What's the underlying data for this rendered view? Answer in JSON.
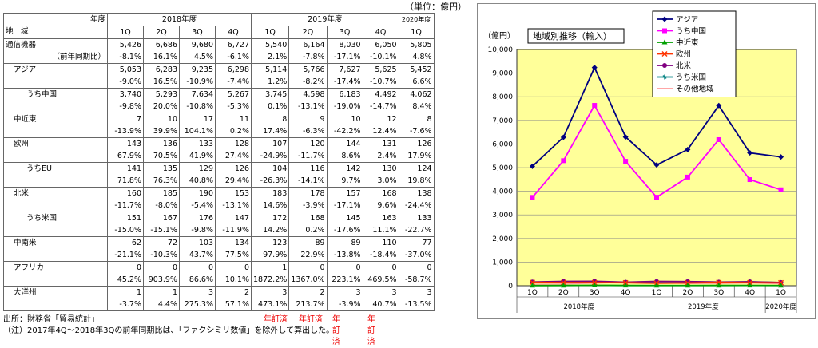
{
  "unit_label": "（単位：億円）",
  "table": {
    "corner_top": "年度",
    "corner_bottom": "地　域",
    "year_groups": [
      "2018年度",
      "2019年度",
      "2020年度"
    ],
    "quarters": [
      "1Q",
      "2Q",
      "3Q",
      "4Q",
      "1Q",
      "2Q",
      "3Q",
      "4Q",
      "1Q"
    ],
    "rows": [
      {
        "label": "通信機器",
        "indent": 0,
        "values": [
          "5,426",
          "6,686",
          "9,680",
          "6,727",
          "5,540",
          "6,164",
          "8,030",
          "6,050",
          "5,805"
        ],
        "yoy_label": "（前年同期比）",
        "yoy": [
          "-8.1%",
          "16.1%",
          "4.5%",
          "-6.1%",
          "2.1%",
          "-7.8%",
          "-17.1%",
          "-10.1%",
          "4.8%"
        ]
      },
      {
        "label": "アジア",
        "indent": 1,
        "values": [
          "5,053",
          "6,283",
          "9,235",
          "6,298",
          "5,114",
          "5,766",
          "7,627",
          "5,625",
          "5,452"
        ],
        "yoy_label": "",
        "yoy": [
          "-9.0%",
          "16.5%",
          "-10.9%",
          "-7.4%",
          "1.2%",
          "-8.2%",
          "-17.4%",
          "-10.7%",
          "6.6%"
        ]
      },
      {
        "label": "うち中国",
        "indent": 2,
        "values": [
          "3,740",
          "5,293",
          "7,634",
          "5,267",
          "3,745",
          "4,598",
          "6,183",
          "4,492",
          "4,062"
        ],
        "yoy_label": "",
        "yoy": [
          "-9.8%",
          "20.0%",
          "-10.8%",
          "-5.3%",
          "0.1%",
          "-13.1%",
          "-19.0%",
          "-14.7%",
          "8.4%"
        ]
      },
      {
        "label": "中近東",
        "indent": 1,
        "values": [
          "7",
          "10",
          "17",
          "11",
          "8",
          "9",
          "10",
          "12",
          "8"
        ],
        "yoy_label": "",
        "yoy": [
          "-13.9%",
          "39.9%",
          "104.1%",
          "0.2%",
          "17.4%",
          "-6.3%",
          "-42.2%",
          "12.4%",
          "-7.6%"
        ]
      },
      {
        "label": "欧州",
        "indent": 1,
        "values": [
          "143",
          "136",
          "133",
          "128",
          "107",
          "120",
          "144",
          "131",
          "126"
        ],
        "yoy_label": "",
        "yoy": [
          "67.9%",
          "70.5%",
          "41.9%",
          "27.4%",
          "-24.9%",
          "-11.7%",
          "8.6%",
          "2.4%",
          "17.9%"
        ]
      },
      {
        "label": "うちEU",
        "indent": 2,
        "values": [
          "141",
          "135",
          "129",
          "126",
          "104",
          "116",
          "142",
          "130",
          "124"
        ],
        "yoy_label": "",
        "yoy": [
          "71.8%",
          "76.3%",
          "40.8%",
          "29.4%",
          "-26.3%",
          "-14.1%",
          "9.7%",
          "3.0%",
          "19.8%"
        ]
      },
      {
        "label": "北米",
        "indent": 1,
        "values": [
          "160",
          "185",
          "190",
          "153",
          "183",
          "178",
          "157",
          "168",
          "138"
        ],
        "yoy_label": "",
        "yoy": [
          "-11.7%",
          "-8.0%",
          "-5.4%",
          "-13.1%",
          "14.6%",
          "-3.9%",
          "-17.1%",
          "9.6%",
          "-24.4%"
        ]
      },
      {
        "label": "うち米国",
        "indent": 2,
        "values": [
          "151",
          "167",
          "176",
          "147",
          "172",
          "168",
          "145",
          "163",
          "133"
        ],
        "yoy_label": "",
        "yoy": [
          "-15.0%",
          "-15.1%",
          "-9.8%",
          "-11.9%",
          "14.2%",
          "0.2%",
          "-17.6%",
          "11.1%",
          "-22.7%"
        ]
      },
      {
        "label": "中南米",
        "indent": 1,
        "values": [
          "62",
          "72",
          "103",
          "134",
          "123",
          "89",
          "89",
          "110",
          "77"
        ],
        "yoy_label": "",
        "yoy": [
          "-21.1%",
          "-10.3%",
          "43.7%",
          "77.5%",
          "97.9%",
          "22.9%",
          "-13.8%",
          "-18.4%",
          "-37.0%"
        ]
      },
      {
        "label": "アフリカ",
        "indent": 1,
        "values": [
          "0",
          "0",
          "0",
          "0",
          "1",
          "0",
          "0",
          "0",
          "0"
        ],
        "yoy_label": "",
        "yoy": [
          "45.2%",
          "903.9%",
          "86.6%",
          "10.1%",
          "1872.2%",
          "1367.0%",
          "223.1%",
          "469.5%",
          "-58.7%"
        ]
      },
      {
        "label": "大洋州",
        "indent": 1,
        "values": [
          "1",
          "1",
          "3",
          "2",
          "3",
          "2",
          "3",
          "3",
          "3"
        ],
        "yoy_label": "",
        "yoy": [
          "-3.7%",
          "4.4%",
          "275.3%",
          "57.1%",
          "473.1%",
          "213.7%",
          "-3.9%",
          "40.7%",
          "-13.5%"
        ]
      }
    ]
  },
  "notes": {
    "source": "出所：財務省「貿易統計」",
    "revised": [
      "年訂済",
      "年訂済",
      "年訂済",
      "年訂済"
    ],
    "note": "（注）2017年4Q～2018年3Qの前年同期比は、「ファクシミリ数値」を除外して算出した。"
  },
  "chart_data": {
    "type": "line",
    "title": "地域別推移（輸入）",
    "ylabel": "（億円）",
    "ylim": [
      0,
      10000
    ],
    "yticks": [
      "0",
      "1,000",
      "2,000",
      "3,000",
      "4,000",
      "5,000",
      "6,000",
      "7,000",
      "8,000",
      "9,000",
      "10,000"
    ],
    "categories": [
      "1Q",
      "2Q",
      "3Q",
      "4Q",
      "1Q",
      "2Q",
      "3Q",
      "4Q",
      "1Q"
    ],
    "year_groups": [
      "2018年度",
      "2019年度",
      "2020年度"
    ],
    "grid": true,
    "legend_position": "top-right",
    "background_color": "#ffff99",
    "series": [
      {
        "name": "アジア",
        "color": "#000080",
        "marker": "diamond",
        "values": [
          5053,
          6283,
          9235,
          6298,
          5114,
          5766,
          7627,
          5625,
          5452
        ]
      },
      {
        "name": "うち中国",
        "color": "#ff00ff",
        "marker": "square",
        "values": [
          3740,
          5293,
          7634,
          5267,
          3745,
          4598,
          6183,
          4492,
          4062
        ]
      },
      {
        "name": "中近東",
        "color": "#00a000",
        "marker": "triangle",
        "values": [
          7,
          10,
          17,
          11,
          8,
          9,
          10,
          12,
          8
        ]
      },
      {
        "name": "欧州",
        "color": "#ff3300",
        "marker": "x",
        "values": [
          143,
          136,
          133,
          128,
          107,
          120,
          144,
          131,
          126
        ]
      },
      {
        "name": "北米",
        "color": "#800080",
        "marker": "circle",
        "values": [
          160,
          185,
          190,
          153,
          183,
          178,
          157,
          168,
          138
        ]
      },
      {
        "name": "うち米国",
        "color": "#008080",
        "marker": "star",
        "values": [
          151,
          167,
          176,
          147,
          172,
          168,
          145,
          163,
          133
        ]
      },
      {
        "name": "その他地域",
        "color": "#ff9999",
        "marker": "none",
        "values": [
          63,
          73,
          106,
          136,
          127,
          91,
          92,
          113,
          80
        ]
      }
    ]
  }
}
